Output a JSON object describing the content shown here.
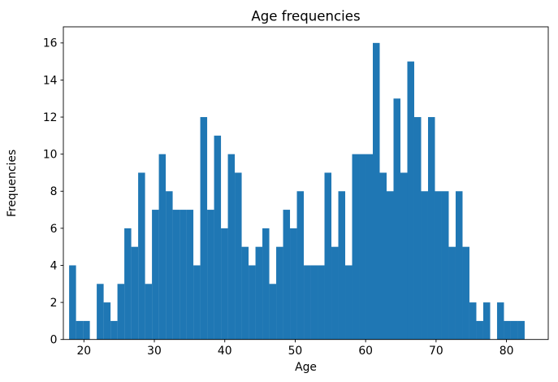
{
  "chart_data": {
    "type": "bar",
    "subtype": "histogram",
    "title": "Age frequencies",
    "xlabel": "Age",
    "ylabel": "Frequencies",
    "bin_start": 17.9,
    "bin_width": 0.98,
    "frequencies": [
      4,
      1,
      1,
      0,
      3,
      2,
      1,
      3,
      6,
      5,
      9,
      3,
      7,
      10,
      8,
      7,
      7,
      7,
      4,
      12,
      7,
      11,
      6,
      10,
      9,
      5,
      4,
      5,
      6,
      3,
      5,
      7,
      6,
      8,
      4,
      4,
      4,
      9,
      5,
      8,
      4,
      10,
      10,
      10,
      16,
      9,
      8,
      13,
      9,
      15,
      12,
      8,
      12,
      8,
      8,
      5,
      8,
      5,
      2,
      1,
      2,
      0,
      2,
      1,
      1,
      1
    ],
    "x_ticks": [
      20,
      30,
      40,
      50,
      60,
      70,
      80
    ],
    "y_ticks": [
      0,
      2,
      4,
      6,
      8,
      10,
      12,
      14,
      16
    ],
    "xlim": [
      17.08,
      85.93
    ],
    "ylim": [
      0,
      16.87
    ],
    "bar_color": "#1f77b4",
    "axis_color": "#000000",
    "background_color": "#ffffff",
    "grid": "off",
    "legend": "none"
  }
}
